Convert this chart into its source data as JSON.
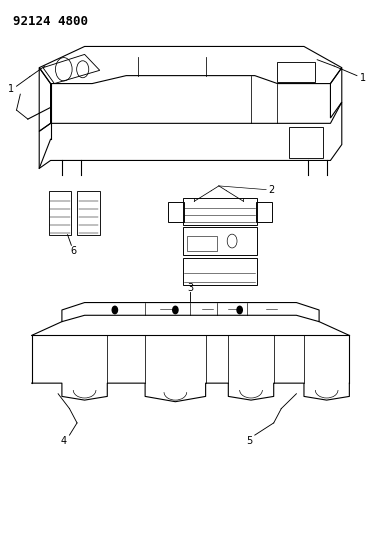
{
  "background_color": "#ffffff",
  "line_color": "#000000",
  "header_text": "92124 4800",
  "header_fontsize": 9,
  "header_fontweight": "bold"
}
